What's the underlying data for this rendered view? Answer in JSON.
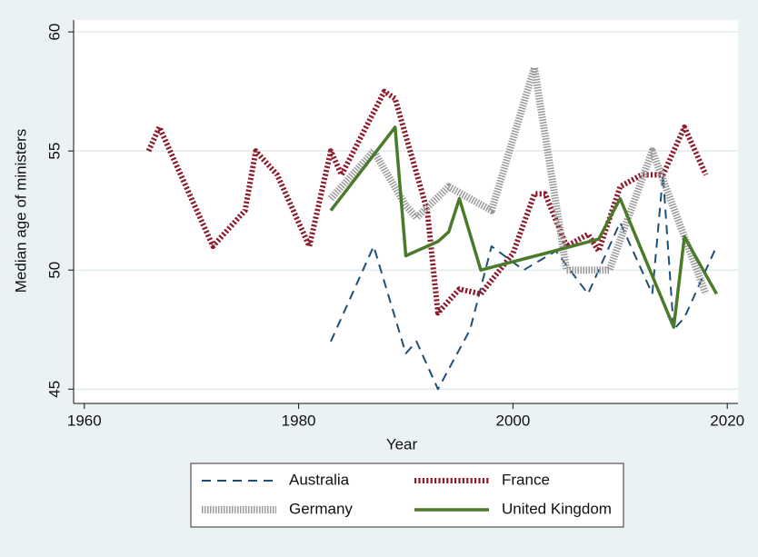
{
  "chart_data": {
    "type": "line",
    "xlabel": "Year",
    "ylabel": "Median age of ministers",
    "xlim": [
      1959,
      2021
    ],
    "xticks": [
      1960,
      1980,
      2000,
      2020
    ],
    "ylim": [
      44.4,
      60.5
    ],
    "yticks": [
      45,
      50,
      55,
      60
    ],
    "grid": true,
    "series": [
      {
        "name": "Australia",
        "color": "#1f4e79",
        "style": "dashed",
        "x": [
          1983,
          1987,
          1990,
          1991,
          1993,
          1996,
          1998,
          2001,
          2004,
          2007,
          2010,
          2013,
          2014,
          2015,
          2016,
          2019
        ],
        "values": [
          47,
          51,
          46.5,
          47,
          45,
          47.5,
          51,
          50,
          50.8,
          49,
          52,
          49,
          54,
          47.5,
          48,
          51
        ]
      },
      {
        "name": "France",
        "color": "#8b1a2b",
        "style": "dotted",
        "x": [
          1966,
          1967,
          1972,
          1975,
          1976,
          1978,
          1981,
          1983,
          1984,
          1988,
          1989,
          1992,
          1993,
          1995,
          1997,
          2000,
          2002,
          2003,
          2005,
          2007,
          2008,
          2010,
          2012,
          2014,
          2016,
          2018
        ],
        "values": [
          55,
          56,
          51,
          52.5,
          55,
          54,
          51,
          55,
          54,
          57.5,
          57.2,
          52.5,
          48.2,
          49.2,
          49,
          50.7,
          53.2,
          53.2,
          51,
          51.5,
          50.8,
          53.5,
          54,
          54,
          56,
          54
        ]
      },
      {
        "name": "Germany",
        "color": "#9a9a9a",
        "style": "hatched",
        "x": [
          1983,
          1987,
          1990,
          1991,
          1994,
          1998,
          2002,
          2005,
          2009,
          2013,
          2018
        ],
        "values": [
          53,
          55,
          52.7,
          52.2,
          53.5,
          52.5,
          58.5,
          50,
          50,
          55,
          49
        ]
      },
      {
        "name": "United Kingdom",
        "color": "#4a7a2a",
        "style": "solid",
        "x": [
          1983,
          1989,
          1990,
          1991,
          1993,
          1994,
          1995,
          1997,
          2003,
          2008,
          2010,
          2015,
          2016,
          2019
        ],
        "values": [
          52.5,
          56,
          50.6,
          50.8,
          51.2,
          51.6,
          53,
          50,
          50.7,
          51.3,
          53,
          47.6,
          51.4,
          49
        ]
      }
    ]
  }
}
